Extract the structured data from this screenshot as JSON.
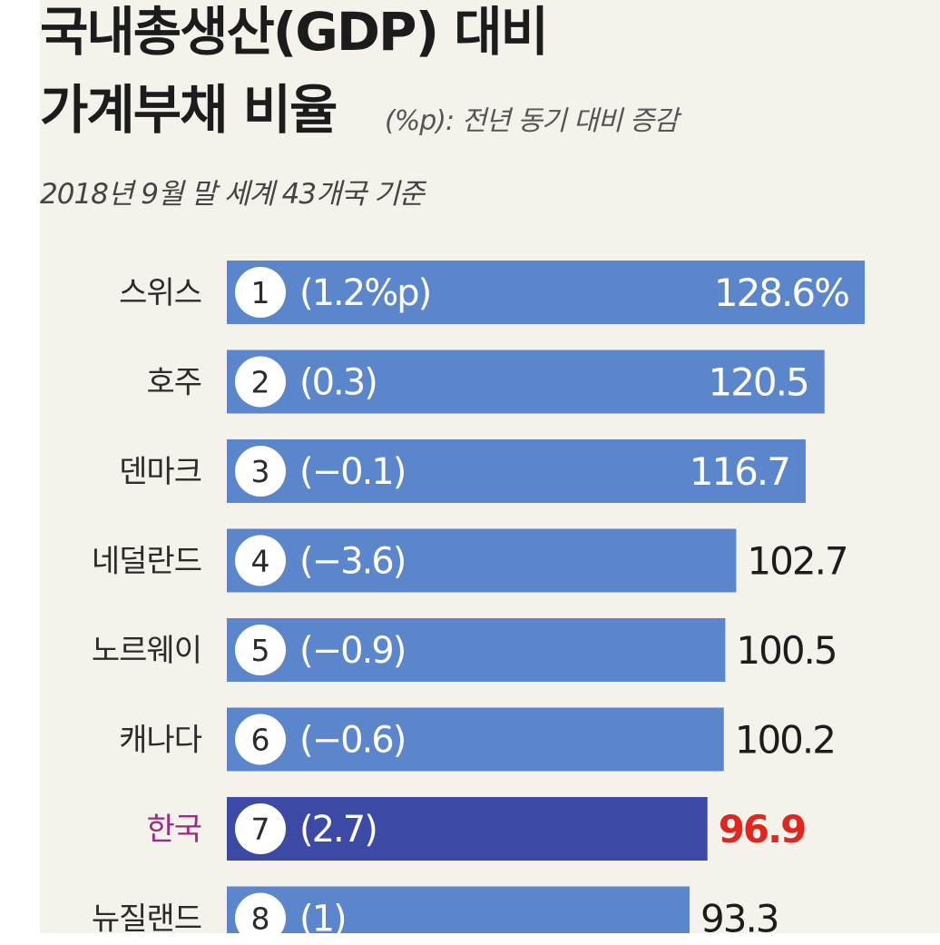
{
  "header": {
    "title_line1": "국내총생산(GDP) 대비",
    "title_line2": "가계부채 비율",
    "note": "(%p): 전년 동기 대비 증감",
    "subtitle": "2018년 9월 말 세계 43개국 기준"
  },
  "colors": {
    "bar": "#5b86cc",
    "highlight_bar": "#3c4aa5",
    "highlight_value": "#e0261f",
    "highlight_label": "#9e2a86",
    "background": "#f4f2ea"
  },
  "chart_data": {
    "type": "bar",
    "orientation": "horizontal",
    "title": "국내총생산(GDP) 대비 가계부채 비율",
    "subtitle": "2018년 9월 말 세계 43개국 기준",
    "unit": "%",
    "highlight": "한국",
    "categories": [
      "스위스",
      "호주",
      "덴마크",
      "네덜란드",
      "노르웨이",
      "캐나다",
      "한국",
      "뉴질랜드"
    ],
    "ranks": [
      "1",
      "2",
      "3",
      "4",
      "5",
      "6",
      "7",
      "8"
    ],
    "values": [
      128.6,
      120.5,
      116.7,
      102.7,
      100.5,
      100.2,
      96.9,
      93.3
    ],
    "value_labels": [
      "128.6%",
      "120.5",
      "116.7",
      "102.7",
      "100.5",
      "100.2",
      "96.9",
      "93.3"
    ],
    "changes": [
      1.2,
      0.3,
      -0.1,
      -3.6,
      -0.9,
      -0.6,
      2.7,
      1
    ],
    "change_labels": [
      "(1.2%p)",
      "(0.3)",
      "(−0.1)",
      "(−3.6)",
      "(−0.9)",
      "(−0.6)",
      "(2.7)",
      "(1)"
    ]
  }
}
